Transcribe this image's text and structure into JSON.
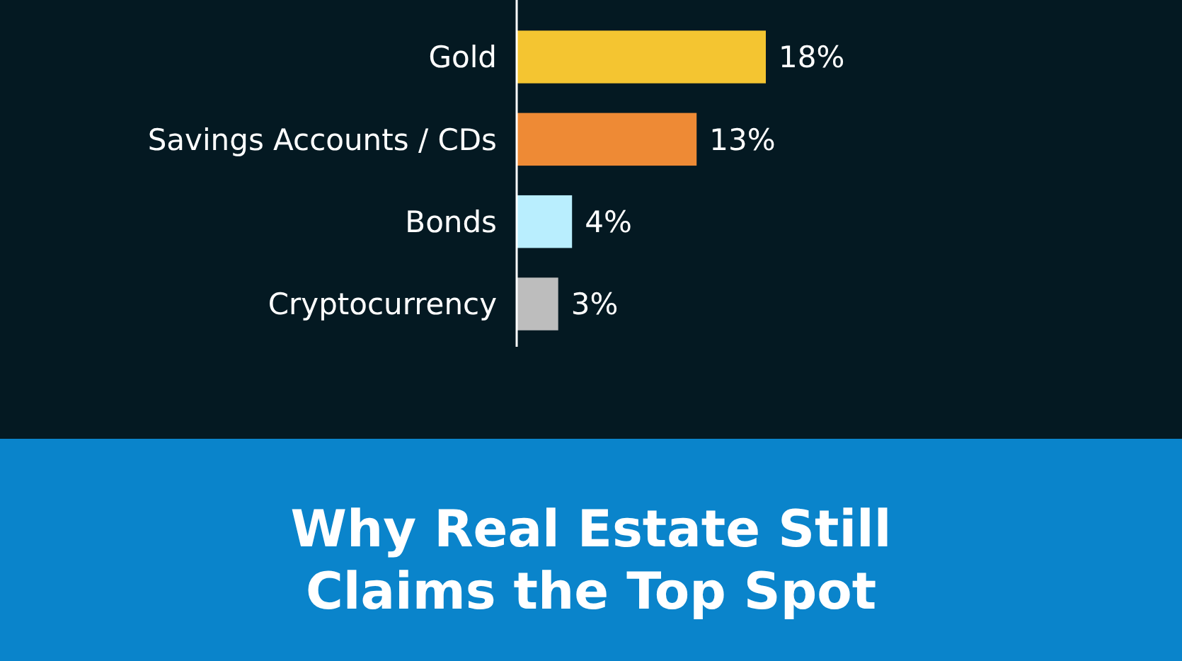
{
  "chart_data": {
    "type": "bar",
    "orientation": "horizontal",
    "title": "Why Real Estate Still Claims the Top Spot",
    "categories": [
      "Gold",
      "Savings Accounts / CDs",
      "Bonds",
      "Cryptocurrency"
    ],
    "values": [
      18,
      13,
      4,
      3
    ],
    "colors": [
      "#f4c531",
      "#ee8a35",
      "#b9eefe",
      "#bdbdbd"
    ],
    "value_labels": [
      "18%",
      "13%",
      "4%",
      "3%"
    ]
  }
}
